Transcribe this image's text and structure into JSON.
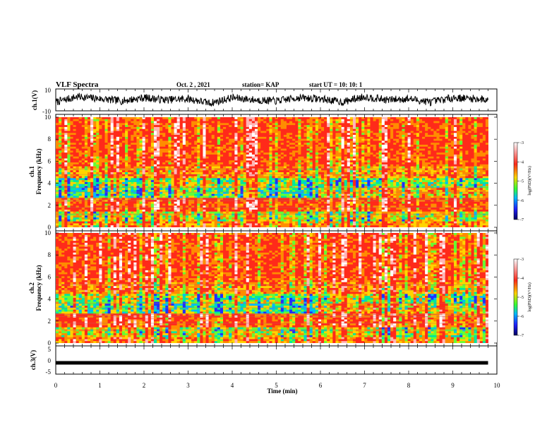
{
  "chart_data": [
    {
      "type": "line",
      "title": "VLF Spectra",
      "date": "Oct. 2  , 2021",
      "station": "station= KAP",
      "start_ut": "start  UT  =   10: 10: 1",
      "ylabel": "ch.1(V)",
      "ylim": [
        -10,
        10
      ],
      "yticks": [
        "10",
        "-10"
      ],
      "xlim": [
        0,
        10
      ],
      "series": [
        {
          "name": "",
          "x": [
            0,
            0.5,
            1,
            1.5,
            2,
            2.5,
            3,
            3.5,
            4,
            4.5,
            5,
            5.5,
            6,
            6.5,
            7,
            7.5,
            8,
            8.5,
            9,
            9.5,
            9.8
          ],
          "values": [
            -2,
            3,
            1,
            -1,
            2,
            0,
            1,
            -3,
            2,
            0,
            -1,
            2,
            1,
            -2,
            3,
            0,
            1,
            -2,
            2,
            1,
            0
          ]
        }
      ]
    },
    {
      "type": "heatmap",
      "ylabel_line1": "ch.1",
      "ylabel_line2": "Frequency (kHz)",
      "ylim": [
        0,
        10
      ],
      "yticks": [
        "0",
        "2",
        "4",
        "6",
        "8",
        "10"
      ],
      "xlim": [
        0,
        9.8
      ],
      "colorbar": {
        "label": "log(PSD)(V²/Hz)",
        "ticks": [
          "-3",
          "-4",
          "-5",
          "-6",
          "-7"
        ],
        "range": [
          -7,
          -3
        ]
      }
    },
    {
      "type": "heatmap",
      "ylabel_line1": "ch.2",
      "ylabel_line2": "Frequency (kHz)",
      "ylim": [
        0,
        10
      ],
      "yticks": [
        "0",
        "2",
        "4",
        "6",
        "8",
        "10"
      ],
      "xlim": [
        0,
        9.8
      ],
      "colorbar": {
        "label": "log(PSD)(V²/Hz)",
        "ticks": [
          "-3",
          "-4",
          "-5",
          "-6",
          "-7"
        ],
        "range": [
          -7,
          -3
        ]
      }
    },
    {
      "type": "line",
      "ylabel": "ch.3(V)",
      "ylim": [
        -5,
        5
      ],
      "yticks": [
        "5",
        "0",
        "-5"
      ],
      "xlabel": "Time  (min)",
      "xticks": [
        "0",
        "1",
        "2",
        "3",
        "4",
        "5",
        "6",
        "7",
        "8",
        "9",
        "10"
      ],
      "xlim": [
        0,
        10
      ],
      "series": [
        {
          "name": "",
          "x": [
            0,
            9.8
          ],
          "values": [
            -1,
            -1
          ]
        }
      ]
    }
  ],
  "colors": {
    "trace": "#000000",
    "colormap": [
      "#ffffff",
      "#ffb0b0",
      "#ff2a1a",
      "#ffd400",
      "#33ff33",
      "#00b8ff",
      "#2020ff",
      "#000060"
    ]
  }
}
